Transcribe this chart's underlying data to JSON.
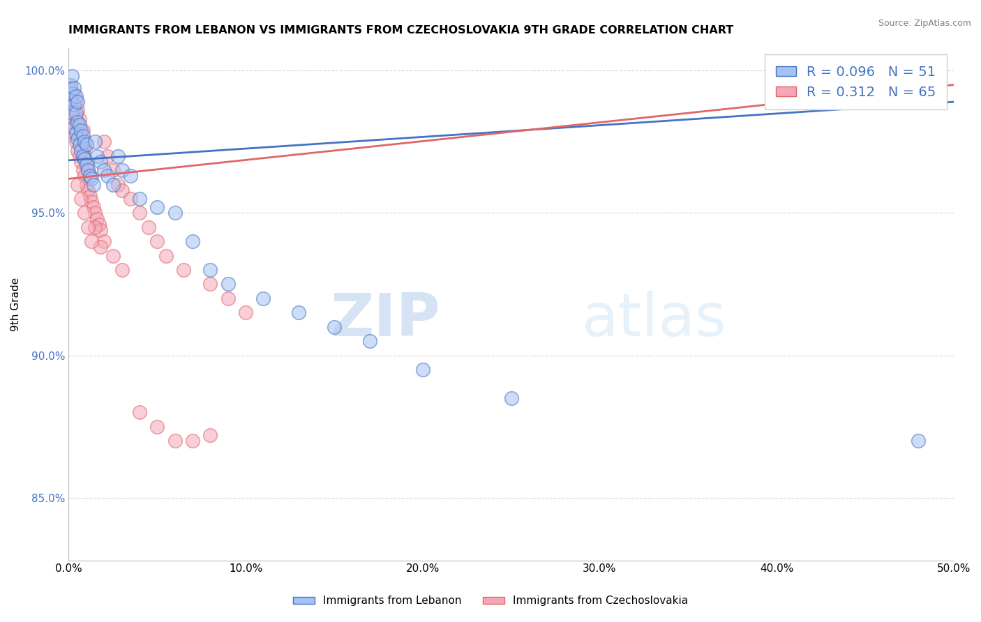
{
  "title": "IMMIGRANTS FROM LEBANON VS IMMIGRANTS FROM CZECHOSLOVAKIA 9TH GRADE CORRELATION CHART",
  "source": "Source: ZipAtlas.com",
  "ylabel": "9th Grade",
  "xlim": [
    0.0,
    0.5
  ],
  "ylim": [
    0.828,
    1.008
  ],
  "xtick_labels": [
    "0.0%",
    "10.0%",
    "20.0%",
    "30.0%",
    "40.0%",
    "50.0%"
  ],
  "xtick_values": [
    0.0,
    0.1,
    0.2,
    0.3,
    0.4,
    0.5
  ],
  "ytick_labels": [
    "85.0%",
    "90.0%",
    "95.0%",
    "100.0%"
  ],
  "ytick_values": [
    0.85,
    0.9,
    0.95,
    1.0
  ],
  "r_lebanon": 0.096,
  "n_lebanon": 51,
  "r_czech": 0.312,
  "n_czech": 65,
  "line_color_lebanon": "#4472c4",
  "line_color_czech": "#e06666",
  "scatter_color_lebanon": "#a4c2f4",
  "scatter_color_czech": "#f4a7b9",
  "watermark_zip": "ZIP",
  "watermark_atlas": "atlas",
  "lebanon_x": [
    0.001,
    0.001,
    0.002,
    0.002,
    0.002,
    0.003,
    0.003,
    0.003,
    0.004,
    0.004,
    0.004,
    0.005,
    0.005,
    0.005,
    0.006,
    0.006,
    0.007,
    0.007,
    0.008,
    0.008,
    0.009,
    0.009,
    0.01,
    0.01,
    0.011,
    0.012,
    0.013,
    0.014,
    0.015,
    0.016,
    0.018,
    0.02,
    0.022,
    0.025,
    0.028,
    0.03,
    0.035,
    0.04,
    0.05,
    0.06,
    0.07,
    0.08,
    0.09,
    0.11,
    0.13,
    0.15,
    0.17,
    0.2,
    0.25,
    0.46,
    0.48
  ],
  "lebanon_y": [
    0.99,
    0.995,
    0.985,
    0.992,
    0.998,
    0.98,
    0.988,
    0.994,
    0.978,
    0.985,
    0.991,
    0.976,
    0.982,
    0.989,
    0.974,
    0.981,
    0.972,
    0.979,
    0.97,
    0.977,
    0.969,
    0.975,
    0.967,
    0.974,
    0.965,
    0.963,
    0.962,
    0.96,
    0.975,
    0.97,
    0.968,
    0.965,
    0.963,
    0.96,
    0.97,
    0.965,
    0.963,
    0.955,
    0.952,
    0.95,
    0.94,
    0.93,
    0.925,
    0.92,
    0.915,
    0.91,
    0.905,
    0.895,
    0.885,
    1.0,
    0.87
  ],
  "czech_x": [
    0.001,
    0.001,
    0.002,
    0.002,
    0.003,
    0.003,
    0.003,
    0.004,
    0.004,
    0.004,
    0.005,
    0.005,
    0.005,
    0.006,
    0.006,
    0.006,
    0.007,
    0.007,
    0.008,
    0.008,
    0.008,
    0.009,
    0.009,
    0.01,
    0.01,
    0.01,
    0.011,
    0.011,
    0.012,
    0.012,
    0.013,
    0.014,
    0.015,
    0.016,
    0.017,
    0.018,
    0.02,
    0.022,
    0.025,
    0.028,
    0.03,
    0.035,
    0.04,
    0.045,
    0.05,
    0.055,
    0.065,
    0.08,
    0.09,
    0.1,
    0.02,
    0.025,
    0.03,
    0.015,
    0.018,
    0.005,
    0.007,
    0.009,
    0.011,
    0.013,
    0.04,
    0.05,
    0.06,
    0.07,
    0.08
  ],
  "czech_y": [
    0.988,
    0.994,
    0.982,
    0.99,
    0.978,
    0.985,
    0.992,
    0.975,
    0.982,
    0.989,
    0.972,
    0.979,
    0.986,
    0.97,
    0.977,
    0.983,
    0.968,
    0.975,
    0.965,
    0.972,
    0.979,
    0.963,
    0.97,
    0.96,
    0.967,
    0.974,
    0.958,
    0.965,
    0.956,
    0.963,
    0.954,
    0.952,
    0.95,
    0.948,
    0.946,
    0.944,
    0.975,
    0.97,
    0.965,
    0.96,
    0.958,
    0.955,
    0.95,
    0.945,
    0.94,
    0.935,
    0.93,
    0.925,
    0.92,
    0.915,
    0.94,
    0.935,
    0.93,
    0.945,
    0.938,
    0.96,
    0.955,
    0.95,
    0.945,
    0.94,
    0.88,
    0.875,
    0.87,
    0.87,
    0.872
  ],
  "leb_trendline_x": [
    0.0,
    0.5
  ],
  "leb_trendline_y": [
    0.9685,
    0.989
  ],
  "cze_trendline_x": [
    0.0,
    0.5
  ],
  "cze_trendline_y": [
    0.962,
    0.995
  ]
}
